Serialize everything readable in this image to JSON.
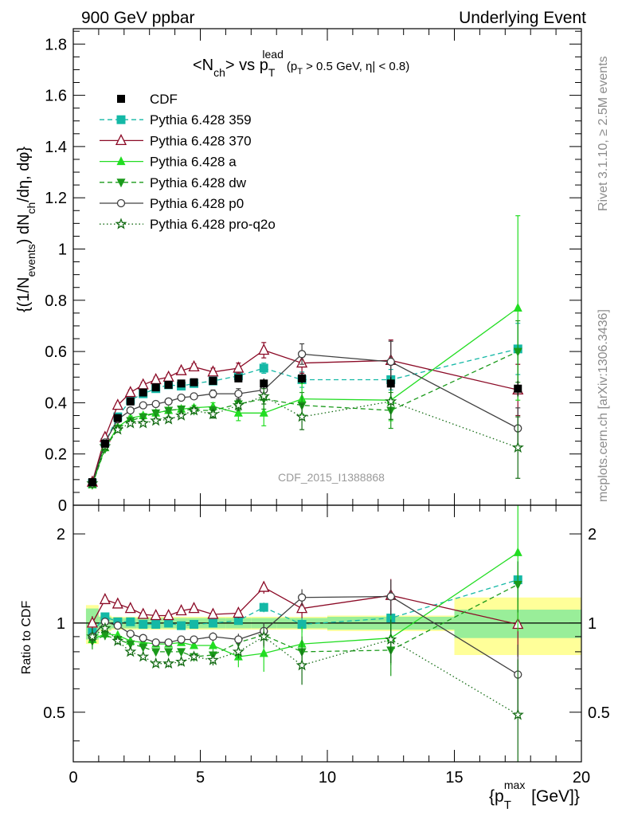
{
  "header": {
    "left": "900 GeV ppbar",
    "right": "Underlying Event"
  },
  "side_labels": {
    "rivet": "Rivet 3.1.10, ≥ 2.5M events",
    "mcplots": "mcplots.cern.ch [arXiv:1306.3436]"
  },
  "chart_data": [
    {
      "type": "line",
      "title": "<N_ch> vs p_T^lead (p_T > 0.5 GeV, |η| < 0.8)",
      "title_parts": {
        "a": "<N",
        "a_sub": "ch",
        "b": "> vs p",
        "b_sup": "lead",
        "b_sub": "T",
        "c": "(p",
        "c_sub": "T",
        "d": " > 0.5 GeV, ",
        "e": "η",
        "f": "| < 0.8)"
      },
      "ylabel": "{(1/N_events) dN_ch/dη, dφ}",
      "ylabel_parts": {
        "a": "{(1/N",
        "a_sub": "events",
        "b": ") dN",
        "b_sub": "ch",
        "c": "/dη, dφ}"
      },
      "watermark": "CDF_2015_I1388868",
      "xlim": [
        0,
        20
      ],
      "ylim": [
        0,
        1.86
      ],
      "yticks": [
        "0",
        "0.2",
        "0.4",
        "0.6",
        "0.8",
        "1",
        "1.2",
        "1.4",
        "1.6",
        "1.8"
      ],
      "legend_position": "top-left",
      "x": [
        0.75,
        1.25,
        1.75,
        2.25,
        2.75,
        3.25,
        3.75,
        4.25,
        4.75,
        5.5,
        6.5,
        7.5,
        9.0,
        12.5,
        17.5
      ],
      "data": {
        "name": "CDF",
        "values": [
          0.09,
          0.24,
          0.34,
          0.405,
          0.44,
          0.46,
          0.47,
          0.475,
          0.48,
          0.485,
          0.495,
          0.475,
          0.495,
          0.475,
          0.455
        ],
        "errors": [
          0.01,
          0.01,
          0.01,
          0.01,
          0.01,
          0.01,
          0.01,
          0.01,
          0.01,
          0.012,
          0.015,
          0.02,
          0.02,
          0.025,
          0.03
        ]
      },
      "series": [
        {
          "name": "Pythia 6.428 359",
          "color": "#14b8a6",
          "marker": "square",
          "dash": "6,4",
          "values": [
            0.085,
            0.245,
            0.345,
            0.41,
            0.435,
            0.455,
            0.47,
            0.465,
            0.475,
            0.485,
            0.505,
            0.535,
            0.49,
            0.49,
            0.61
          ],
          "errors": [
            0.005,
            0.008,
            0.008,
            0.008,
            0.008,
            0.008,
            0.008,
            0.008,
            0.008,
            0.01,
            0.01,
            0.02,
            0.03,
            0.04,
            0.1
          ]
        },
        {
          "name": "Pythia 6.428 370",
          "color": "#8b0a26",
          "marker": "triangle-open",
          "dash": "",
          "values": [
            0.09,
            0.265,
            0.39,
            0.44,
            0.47,
            0.49,
            0.5,
            0.525,
            0.54,
            0.52,
            0.535,
            0.605,
            0.555,
            0.565,
            0.45
          ],
          "errors": [
            0.005,
            0.008,
            0.008,
            0.01,
            0.01,
            0.01,
            0.01,
            0.01,
            0.012,
            0.015,
            0.02,
            0.03,
            0.04,
            0.08,
            0.1
          ]
        },
        {
          "name": "Pythia 6.428 a",
          "color": "#22dd22",
          "marker": "triangle",
          "dash": "",
          "values": [
            0.08,
            0.225,
            0.305,
            0.34,
            0.35,
            0.36,
            0.37,
            0.375,
            0.38,
            0.385,
            0.36,
            0.36,
            0.415,
            0.41,
            0.77
          ],
          "errors": [
            0.005,
            0.008,
            0.008,
            0.008,
            0.008,
            0.008,
            0.01,
            0.01,
            0.01,
            0.015,
            0.03,
            0.05,
            0.06,
            0.08,
            0.36
          ]
        },
        {
          "name": "Pythia 6.428 dw",
          "color": "#1a9a1a",
          "marker": "triangle-down",
          "dash": "6,4",
          "values": [
            0.08,
            0.22,
            0.3,
            0.33,
            0.345,
            0.36,
            0.37,
            0.375,
            0.37,
            0.37,
            0.395,
            0.415,
            0.39,
            0.37,
            0.6
          ],
          "errors": [
            0.005,
            0.008,
            0.008,
            0.008,
            0.008,
            0.008,
            0.01,
            0.01,
            0.01,
            0.015,
            0.02,
            0.04,
            0.05,
            0.07,
            0.12
          ]
        },
        {
          "name": "Pythia 6.428 p0",
          "color": "#404040",
          "marker": "circle-open",
          "dash": "",
          "values": [
            0.085,
            0.245,
            0.335,
            0.37,
            0.39,
            0.395,
            0.405,
            0.42,
            0.425,
            0.435,
            0.435,
            0.45,
            0.59,
            0.56,
            0.3
          ],
          "errors": [
            0.005,
            0.008,
            0.008,
            0.008,
            0.008,
            0.008,
            0.01,
            0.01,
            0.01,
            0.015,
            0.02,
            0.03,
            0.04,
            0.08,
            0.08
          ]
        },
        {
          "name": "Pythia 6.428 pro-q2o",
          "color": "#136b13",
          "marker": "star",
          "dash": "1.5,3",
          "values": [
            0.085,
            0.23,
            0.295,
            0.32,
            0.32,
            0.33,
            0.335,
            0.35,
            0.37,
            0.355,
            0.39,
            0.425,
            0.345,
            0.405,
            0.225
          ],
          "errors": [
            0.005,
            0.008,
            0.008,
            0.008,
            0.008,
            0.008,
            0.01,
            0.01,
            0.01,
            0.015,
            0.02,
            0.03,
            0.05,
            0.07,
            0.12
          ]
        }
      ]
    },
    {
      "type": "line",
      "title": "",
      "ylabel": "Ratio to CDF",
      "xlabel": "{p_T^max [GeV]}",
      "xlabel_parts": {
        "a": "{p",
        "a_sub": "T",
        "a_sup": "max",
        "b": " [GeV]}"
      },
      "xlim": [
        0,
        20
      ],
      "ylim": [
        0.34,
        2.5
      ],
      "yscale": "log",
      "xticks": [
        "0",
        "5",
        "10",
        "15",
        "20"
      ],
      "yticks": [
        "0.5",
        "1",
        "2"
      ],
      "band_bins": [
        0.5,
        1.0,
        1.5,
        2.0,
        2.5,
        3.0,
        3.5,
        4.0,
        4.5,
        5.0,
        6.0,
        7.0,
        8.0,
        10.0,
        15.0,
        20.0
      ],
      "band_inner": [
        0.12,
        0.05,
        0.04,
        0.04,
        0.04,
        0.04,
        0.04,
        0.04,
        0.04,
        0.04,
        0.04,
        0.04,
        0.04,
        0.05,
        0.11
      ],
      "band_outer": [
        0.15,
        0.06,
        0.05,
        0.05,
        0.05,
        0.05,
        0.05,
        0.05,
        0.05,
        0.05,
        0.05,
        0.05,
        0.05,
        0.06,
        0.22
      ],
      "series": [
        {
          "name": "Pythia 6.428 359",
          "values": [
            0.93,
            1.05,
            1.01,
            1.01,
            0.99,
            0.99,
            1.0,
            0.98,
            0.99,
            1.0,
            1.02,
            1.13,
            0.99,
            1.04,
            1.4
          ]
        },
        {
          "name": "Pythia 6.428 370",
          "values": [
            1.0,
            1.2,
            1.16,
            1.12,
            1.07,
            1.06,
            1.06,
            1.1,
            1.12,
            1.07,
            1.08,
            1.32,
            1.12,
            1.24,
            0.99
          ]
        },
        {
          "name": "Pythia 6.428 a",
          "values": [
            0.88,
            0.92,
            0.91,
            0.87,
            0.86,
            0.85,
            0.85,
            0.86,
            0.84,
            0.84,
            0.77,
            0.79,
            0.85,
            0.89,
            1.73
          ]
        },
        {
          "name": "Pythia 6.428 dw",
          "values": [
            0.87,
            0.91,
            0.88,
            0.85,
            0.83,
            0.8,
            0.8,
            0.8,
            0.77,
            0.78,
            0.86,
            0.91,
            0.8,
            0.81,
            1.35
          ]
        },
        {
          "name": "Pythia 6.428 p0",
          "values": [
            0.9,
            1.01,
            0.98,
            0.92,
            0.89,
            0.86,
            0.86,
            0.88,
            0.88,
            0.9,
            0.88,
            0.94,
            1.22,
            1.23,
            0.67
          ]
        },
        {
          "name": "Pythia 6.428 pro-q2o",
          "values": [
            0.9,
            0.96,
            0.87,
            0.8,
            0.77,
            0.73,
            0.73,
            0.74,
            0.77,
            0.75,
            0.8,
            0.9,
            0.72,
            0.88,
            0.49
          ]
        }
      ]
    }
  ]
}
